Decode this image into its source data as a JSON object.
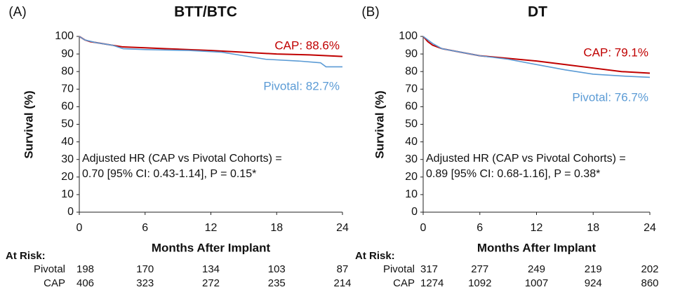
{
  "chart_data": [
    {
      "type": "line",
      "panel_label": "(A)",
      "title": "BTT/BTC",
      "y_label": "Survival (%)",
      "x_label": "Months After Implant",
      "xlim": [
        0,
        24
      ],
      "xticks": [
        0,
        6,
        12,
        18,
        24
      ],
      "ylim": [
        0,
        100
      ],
      "yticks": [
        0,
        10,
        20,
        30,
        40,
        50,
        60,
        70,
        80,
        90,
        100
      ],
      "series": [
        {
          "name": "CAP",
          "end_label": "CAP: 88.6%",
          "color": "#c00000",
          "x": [
            0,
            0.5,
            1,
            2,
            3,
            4,
            6,
            8,
            12,
            15,
            18,
            21,
            24
          ],
          "values": [
            100,
            98,
            97,
            96,
            95,
            94,
            93.5,
            93,
            92,
            91,
            90,
            89.5,
            88.6
          ]
        },
        {
          "name": "Pivotal",
          "end_label": "Pivotal: 82.7%",
          "color": "#5b9bd5",
          "x": [
            0,
            0.5,
            1.5,
            3,
            4,
            6,
            10,
            13,
            15,
            17,
            20,
            22,
            22.5,
            24
          ],
          "values": [
            100,
            98,
            96.5,
            95,
            93,
            92.5,
            92,
            91,
            89,
            87,
            86,
            85,
            82.7,
            82.7
          ]
        }
      ],
      "annotations": [
        "Adjusted HR (CAP vs Pivotal Cohorts) =",
        "0.70 [95% CI: 0.43-1.14], P = 0.15*"
      ],
      "at_risk": {
        "label": "At Risk:",
        "rows": [
          {
            "name": "Pivotal",
            "values": [
              198,
              170,
              134,
              103,
              87
            ]
          },
          {
            "name": "CAP",
            "values": [
              406,
              323,
              272,
              235,
              214
            ]
          }
        ]
      }
    },
    {
      "type": "line",
      "panel_label": "(B)",
      "title": "DT",
      "y_label": "Survival (%)",
      "x_label": "Months After Implant",
      "xlim": [
        0,
        24
      ],
      "xticks": [
        0,
        6,
        12,
        18,
        24
      ],
      "ylim": [
        0,
        100
      ],
      "yticks": [
        0,
        10,
        20,
        30,
        40,
        50,
        60,
        70,
        80,
        90,
        100
      ],
      "series": [
        {
          "name": "CAP",
          "end_label": "CAP: 79.1%",
          "color": "#c00000",
          "x": [
            0,
            0.5,
            1,
            2,
            4,
            6,
            9,
            12,
            15,
            18,
            21,
            24
          ],
          "values": [
            100,
            97,
            95,
            93,
            91,
            89,
            87.5,
            86,
            84,
            82,
            80,
            79.1
          ]
        },
        {
          "name": "Pivotal",
          "end_label": "Pivotal: 76.7%",
          "color": "#5b9bd5",
          "x": [
            0,
            0.5,
            1,
            2,
            4,
            6,
            9,
            12,
            15,
            18,
            21,
            24
          ],
          "values": [
            100,
            98,
            96,
            93,
            91,
            89,
            87,
            84,
            81,
            78.5,
            77.5,
            76.7
          ]
        }
      ],
      "annotations": [
        "Adjusted HR (CAP vs Pivotal Cohorts) =",
        "0.89 [95% CI: 0.68-1.16], P = 0.38*"
      ],
      "at_risk": {
        "label": "At Risk:",
        "rows": [
          {
            "name": "Pivotal",
            "values": [
              317,
              277,
              249,
              219,
              202
            ]
          },
          {
            "name": "CAP",
            "values": [
              1274,
              1092,
              1007,
              924,
              860
            ]
          }
        ]
      }
    }
  ]
}
